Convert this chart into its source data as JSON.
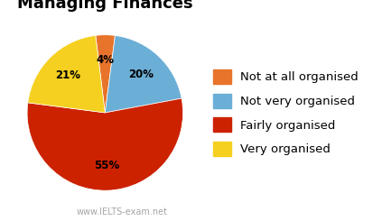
{
  "title": "Managing Finances",
  "labels": [
    "Not at all organised",
    "Not very organised",
    "Fairly organised",
    "Very organised"
  ],
  "values": [
    4,
    20,
    55,
    21
  ],
  "colors": [
    "#E8732A",
    "#6BAED6",
    "#CC2200",
    "#F5D020"
  ],
  "startangle": 97,
  "watermark": "www.IELTS-exam.net",
  "title_fontsize": 13,
  "legend_fontsize": 9.5,
  "pctdistance": 0.68
}
